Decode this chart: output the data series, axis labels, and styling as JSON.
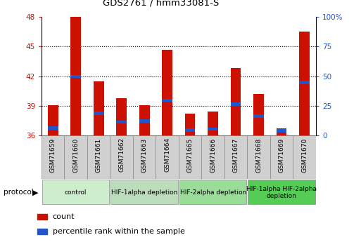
{
  "title": "GDS2761 / hmm33081-S",
  "samples": [
    "GSM71659",
    "GSM71660",
    "GSM71661",
    "GSM71662",
    "GSM71663",
    "GSM71664",
    "GSM71665",
    "GSM71666",
    "GSM71667",
    "GSM71668",
    "GSM71669",
    "GSM71670"
  ],
  "bar_tops": [
    39.1,
    48.0,
    41.5,
    39.8,
    39.1,
    44.7,
    38.2,
    38.4,
    42.8,
    40.2,
    36.7,
    46.5
  ],
  "blue_positions": [
    36.6,
    41.8,
    38.1,
    37.2,
    37.3,
    39.4,
    36.4,
    36.5,
    39.0,
    37.8,
    36.3,
    41.2
  ],
  "blue_heights": [
    0.32,
    0.32,
    0.32,
    0.32,
    0.32,
    0.32,
    0.32,
    0.32,
    0.32,
    0.32,
    0.32,
    0.32
  ],
  "base": 36.0,
  "ylim_left": [
    36,
    48
  ],
  "yticks_left": [
    36,
    39,
    42,
    45,
    48
  ],
  "ylim_right": [
    0,
    100
  ],
  "yticks_right": [
    0,
    25,
    50,
    75,
    100
  ],
  "yticklabels_right": [
    "0",
    "25",
    "50",
    "75",
    "100%"
  ],
  "bar_color": "#cc1100",
  "blue_color": "#2255cc",
  "bar_width": 0.45,
  "protocol_groups": [
    {
      "label": "control",
      "start": 0,
      "end": 3,
      "color": "#cceecc"
    },
    {
      "label": "HIF-1alpha depletion",
      "start": 3,
      "end": 6,
      "color": "#bbddbb"
    },
    {
      "label": "HIF-2alpha depletion",
      "start": 6,
      "end": 9,
      "color": "#99dd99"
    },
    {
      "label": "HIF-1alpha HIF-2alpha\ndepletion",
      "start": 9,
      "end": 12,
      "color": "#55cc55"
    }
  ],
  "protocol_label": "protocol",
  "legend_count_label": "count",
  "legend_pct_label": "percentile rank within the sample",
  "tick_color_left": "#cc1100",
  "tick_color_right": "#2255cc",
  "sample_box_color": "#d0d0d0",
  "grid_yticks": [
    39,
    42,
    45
  ]
}
